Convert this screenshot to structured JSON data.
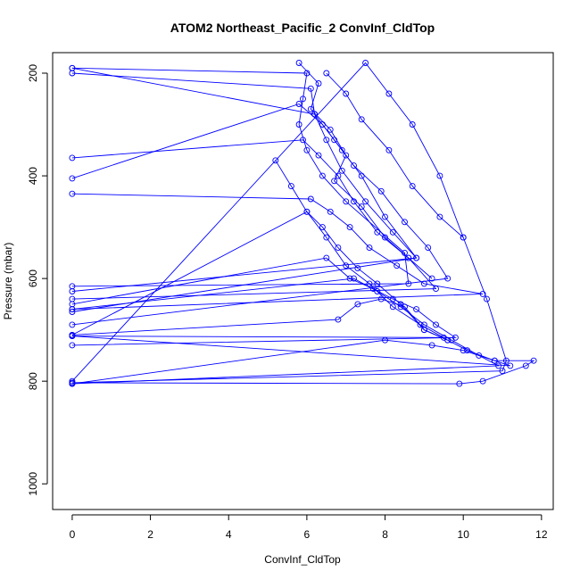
{
  "chart_data": {
    "type": "line",
    "title": "ATOM2 Northeast_Pacific_2 ConvInf_CldTop",
    "xlabel": "ConvInf_CldTop",
    "ylabel": "Pressure (mbar)",
    "xlim": [
      -0.5,
      12.3
    ],
    "ylim": [
      1050,
      160
    ],
    "y_reversed": true,
    "grid": false,
    "x_ticks": [
      0,
      2,
      4,
      6,
      8,
      10,
      12
    ],
    "y_ticks": [
      200,
      400,
      600,
      800,
      1000
    ],
    "colors": {
      "series": "#0000ff",
      "axis": "#000000"
    },
    "series": [
      {
        "x": [
          0,
          6.0,
          5.9,
          5.8,
          6.0,
          6.4,
          7.0,
          8.5,
          8.6,
          0
        ],
        "y": [
          190,
          200,
          250,
          300,
          350,
          400,
          450,
          550,
          610,
          615
        ]
      },
      {
        "x": [
          0,
          6.1,
          6.2,
          6.5,
          6.9,
          7.5,
          8.2,
          8.8,
          0
        ],
        "y": [
          200,
          230,
          280,
          330,
          390,
          450,
          510,
          560,
          625
        ]
      },
      {
        "x": [
          0,
          5.9,
          6.3,
          6.8,
          7.2,
          7.8,
          8.6,
          9.3,
          0
        ],
        "y": [
          365,
          330,
          360,
          400,
          450,
          510,
          560,
          620,
          640
        ]
      },
      {
        "x": [
          0,
          6.1,
          6.6,
          7.1,
          7.6,
          8.3,
          9.0,
          10.5,
          0
        ],
        "y": [
          435,
          445,
          470,
          500,
          540,
          575,
          610,
          630,
          660
        ]
      },
      {
        "x": [
          0,
          5.8,
          6.4,
          6.9,
          7.4,
          8.0,
          8.8,
          0
        ],
        "y": [
          405,
          260,
          300,
          350,
          400,
          480,
          560,
          665
        ]
      },
      {
        "x": [
          0,
          6.2,
          6.7,
          7.2,
          7.9,
          8.5,
          9.1,
          9.6,
          0
        ],
        "y": [
          190,
          280,
          330,
          380,
          430,
          490,
          540,
          600,
          690
        ]
      },
      {
        "x": [
          0,
          6.8,
          7.3,
          7.9,
          8.5,
          9.0,
          9.6,
          10.1,
          10.8,
          11.2,
          0
        ],
        "y": [
          710,
          680,
          650,
          640,
          655,
          700,
          720,
          740,
          760,
          770,
          712
        ]
      },
      {
        "x": [
          0,
          6.5,
          7.1,
          7.7,
          8.2,
          8.8,
          9.3,
          9.8,
          0
        ],
        "y": [
          650,
          560,
          600,
          620,
          640,
          660,
          690,
          715,
          730
        ]
      },
      {
        "x": [
          0,
          6.0,
          6.5,
          7.0,
          7.6,
          8.2,
          8.9,
          9.5,
          0
        ],
        "y": [
          710,
          470,
          520,
          575,
          610,
          655,
          690,
          715,
          712
        ]
      },
      {
        "x": [
          0,
          8.0,
          9.2,
          10.0,
          10.8,
          11.8,
          11.6,
          10.5,
          9.9,
          0
        ],
        "y": [
          805,
          720,
          730,
          740,
          760,
          760,
          770,
          800,
          805,
          803
        ]
      },
      {
        "x": [
          0,
          7.2,
          7.8,
          8.4,
          9.0,
          9.7,
          10.4,
          10.9,
          0
        ],
        "y": [
          660,
          600,
          625,
          655,
          690,
          720,
          750,
          770,
          805
        ]
      },
      {
        "x": [
          0,
          7.5,
          8.1,
          8.7,
          9.4,
          10.0,
          10.6,
          11.1,
          11.0,
          0
        ],
        "y": [
          800,
          180,
          240,
          300,
          400,
          520,
          640,
          760,
          780,
          803
        ]
      },
      {
        "x": [
          5.2,
          5.6,
          6.0,
          6.4,
          6.8,
          7.3,
          7.8,
          8.4,
          9.0,
          9.6
        ],
        "y": [
          370,
          420,
          470,
          500,
          540,
          580,
          610,
          650,
          700,
          720
        ]
      },
      {
        "x": [
          5.8,
          6.3,
          6.1,
          6.6,
          7.0,
          6.7,
          7.4,
          8.0,
          8.6,
          9.2
        ],
        "y": [
          180,
          220,
          270,
          310,
          360,
          410,
          460,
          520,
          560,
          600
        ]
      },
      {
        "x": [
          6.5,
          7.0,
          7.4,
          8.1,
          8.7,
          9.4,
          10.0
        ],
        "y": [
          200,
          240,
          290,
          350,
          420,
          480,
          520
        ]
      }
    ]
  }
}
